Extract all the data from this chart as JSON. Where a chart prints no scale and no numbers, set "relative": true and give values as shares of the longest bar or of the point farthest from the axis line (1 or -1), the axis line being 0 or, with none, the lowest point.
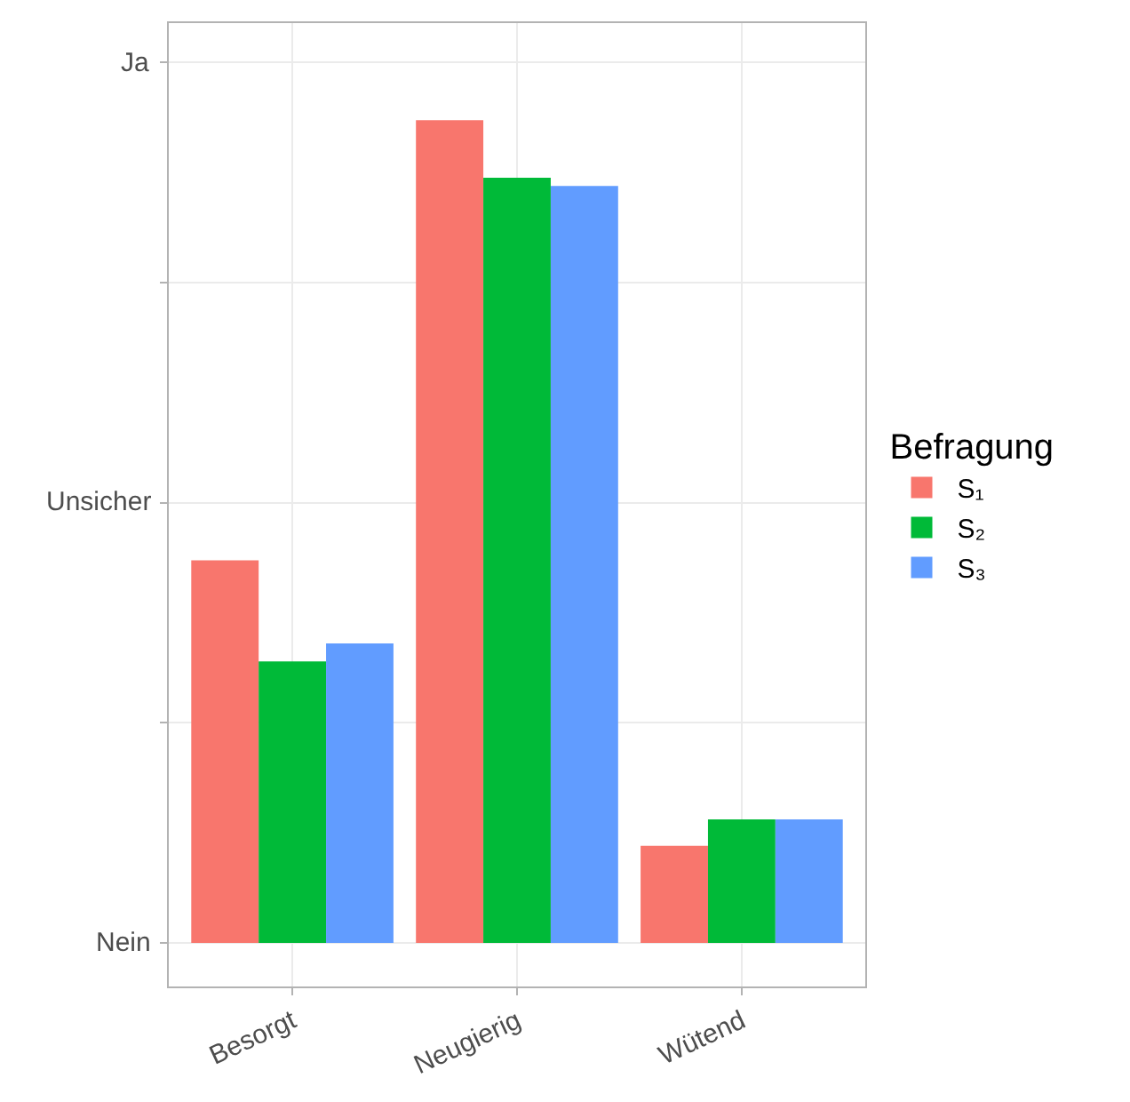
{
  "chart_data": {
    "type": "bar",
    "relative": true,
    "categories": [
      "Besorgt",
      "Neugierig",
      "Wütend"
    ],
    "series": [
      {
        "name": "S₁",
        "color": "#f8766d",
        "values": [
          0.465,
          1,
          0.118
        ]
      },
      {
        "name": "S₂",
        "color": "#00ba38",
        "values": [
          0.342,
          0.93,
          0.15
        ]
      },
      {
        "name": "S₃",
        "color": "#619cff",
        "values": [
          0.364,
          0.92,
          0.15
        ]
      }
    ],
    "legend_title": "Befragung",
    "legend": "right",
    "grid": true,
    "annotations": [
      "Nein",
      "Unsicher",
      "Ja"
    ]
  }
}
